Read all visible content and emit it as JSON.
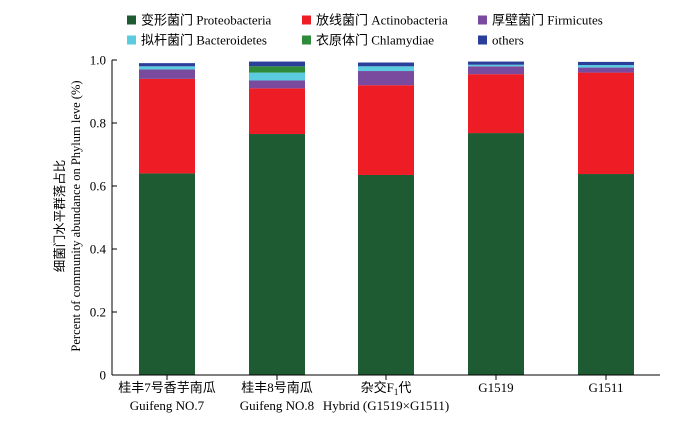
{
  "chart_data": {
    "type": "bar",
    "stacked": true,
    "categories": [
      {
        "cn": "桂丰7号香芋南瓜",
        "en": "Guifeng NO.7"
      },
      {
        "cn": "桂丰8号南瓜",
        "en": "Guifeng NO.8"
      },
      {
        "cn": "杂交F",
        "cn_sub": "1",
        "cn_tail": "代",
        "en": "Hybrid (G1519×G1511)"
      },
      {
        "cn": "G1519",
        "en": ""
      },
      {
        "cn": "G1511",
        "en": ""
      }
    ],
    "series": [
      {
        "name": "变形菌门 Proteobacteria",
        "color": "#1e5a32",
        "values": [
          0.64,
          0.765,
          0.635,
          0.768,
          0.638
        ]
      },
      {
        "name": "放线菌门 Actinobacteria",
        "color": "#ee1c25",
        "values": [
          0.3,
          0.145,
          0.285,
          0.187,
          0.322
        ]
      },
      {
        "name": "厚壁菌门 Firmicutes",
        "color": "#7a4a9e",
        "values": [
          0.03,
          0.025,
          0.045,
          0.025,
          0.016
        ]
      },
      {
        "name": "拟杆菌门 Bacteroidetes",
        "color": "#5bcbe0",
        "values": [
          0.01,
          0.025,
          0.015,
          0.005,
          0.008
        ]
      },
      {
        "name": "衣原体门 Chlamydiae",
        "color": "#2e8b3a",
        "values": [
          0.0,
          0.02,
          0.0,
          0.0,
          0.0
        ]
      },
      {
        "name": "others",
        "color": "#2a3f99",
        "values": [
          0.01,
          0.015,
          0.012,
          0.01,
          0.01
        ]
      }
    ],
    "ylabel_cn": "细菌门水平群落占比",
    "ylabel_en": "Percent of community abundance on Phylum leve (%)",
    "ylim": [
      0,
      1.0
    ],
    "yticks": [
      "0",
      "0.2",
      "0.4",
      "0.6",
      "0.8",
      "1.0"
    ],
    "legend_position": "top",
    "grid": false
  }
}
